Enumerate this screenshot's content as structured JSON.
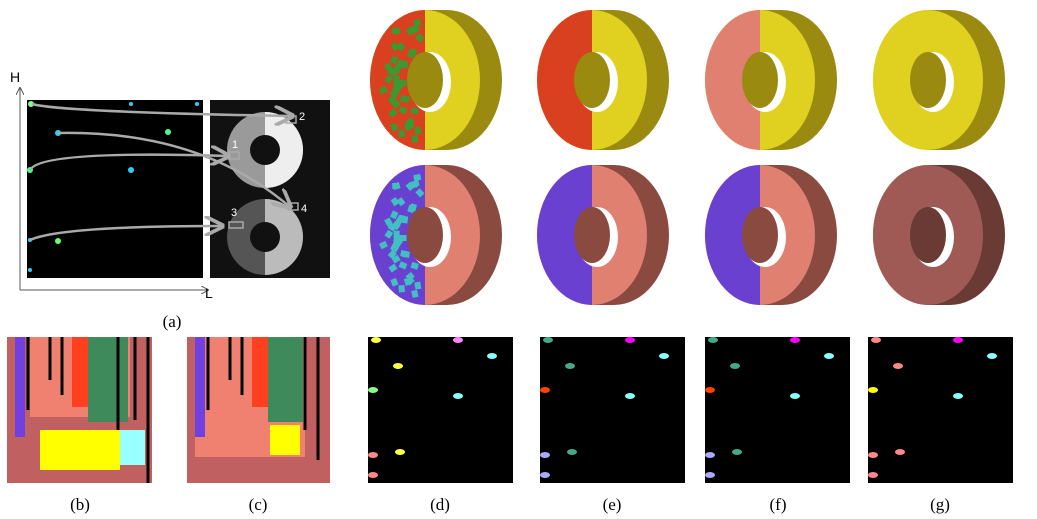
{
  "panel_a": {
    "axis_y": "H",
    "axis_x": "L",
    "markers": [
      "1",
      "2",
      "3",
      "4"
    ]
  },
  "captions": [
    "(a)",
    "(b)",
    "(c)",
    "(d)",
    "(e)",
    "(f)",
    "(g)"
  ]
}
